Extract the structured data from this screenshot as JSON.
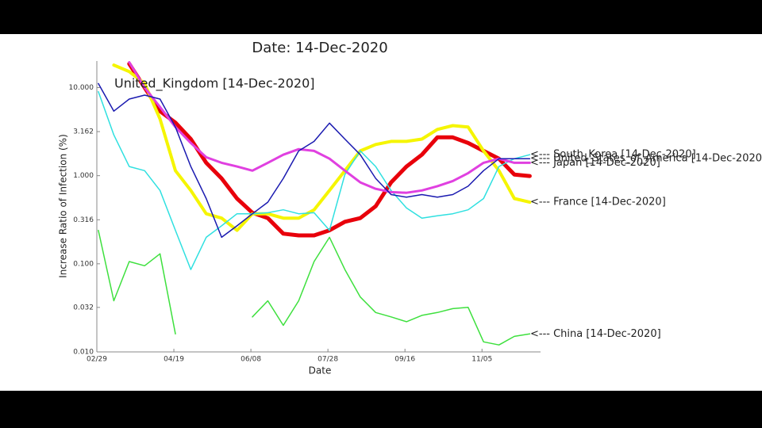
{
  "chart_data": {
    "type": "line",
    "title": "Date: 14-Dec-2020",
    "xlabel": "Date",
    "ylabel": "Increase Ratio of Infection (%)",
    "log_y": true,
    "xlim": [
      "2020-02-29",
      "2020-12-13"
    ],
    "xticks": [
      {
        "value": "2020-02-29",
        "label": "02/29"
      },
      {
        "value": "2020-04-19",
        "label": "04/19"
      },
      {
        "value": "2020-06-08",
        "label": "06/08"
      },
      {
        "value": "2020-07-28",
        "label": "07/28"
      },
      {
        "value": "2020-09-16",
        "label": "09/16"
      },
      {
        "value": "2020-11-05",
        "label": "11/05"
      }
    ],
    "ylim": [
      0.01,
      20
    ],
    "yticks": [
      {
        "value": 0.01,
        "label": "0.010"
      },
      {
        "value": 0.032,
        "label": "0.032"
      },
      {
        "value": 0.1,
        "label": "0.100"
      },
      {
        "value": 0.316,
        "label": "0.316"
      },
      {
        "value": 1,
        "label": "1.000"
      },
      {
        "value": 3.162,
        "label": "3.162"
      },
      {
        "value": 10,
        "label": "10.000"
      }
    ],
    "x": [
      "2020-03-01",
      "2020-03-11",
      "2020-03-21",
      "2020-03-31",
      "2020-04-10",
      "2020-04-20",
      "2020-04-30",
      "2020-05-10",
      "2020-05-20",
      "2020-05-30",
      "2020-06-09",
      "2020-06-19",
      "2020-06-29",
      "2020-07-09",
      "2020-07-19",
      "2020-07-29",
      "2020-08-08",
      "2020-08-18",
      "2020-08-28",
      "2020-09-07",
      "2020-09-17",
      "2020-09-27",
      "2020-10-07",
      "2020-10-17",
      "2020-10-27",
      "2020-11-06",
      "2020-11-16",
      "2020-11-26",
      "2020-12-06"
    ],
    "series": [
      {
        "name": "United_Kingdom [14-Dec-2020]",
        "label_position": "inside",
        "color": "#e8000b",
        "width": 5,
        "values": [
          null,
          null,
          18.6,
          10.0,
          5.4,
          4.0,
          2.6,
          1.4,
          0.93,
          0.55,
          0.38,
          0.33,
          0.22,
          0.21,
          0.21,
          0.24,
          0.3,
          0.33,
          0.45,
          0.84,
          1.27,
          1.73,
          2.72,
          2.72,
          2.35,
          1.91,
          1.56,
          1.03,
          0.99
        ]
      },
      {
        "name": "<--- France [14-Dec-2020]",
        "label_position": "right",
        "color": "#f5f500",
        "width": 4,
        "values": [
          null,
          18,
          15.2,
          11.1,
          4.4,
          1.14,
          0.68,
          0.37,
          0.33,
          0.24,
          0.37,
          0.37,
          0.33,
          0.33,
          0.41,
          0.68,
          1.14,
          1.91,
          2.26,
          2.45,
          2.45,
          2.6,
          3.35,
          3.7,
          3.56,
          1.91,
          1.14,
          0.55,
          0.5
        ]
      },
      {
        "name": "<--- South_Korea [14-Dec-2020]",
        "label_position": "right",
        "color": "#2fe0e0",
        "width": 1.5,
        "values": [
          9.0,
          2.9,
          1.27,
          1.14,
          0.68,
          0.24,
          0.086,
          0.2,
          0.27,
          0.37,
          0.37,
          0.38,
          0.41,
          0.37,
          0.38,
          0.24,
          1.03,
          1.91,
          1.27,
          0.68,
          0.43,
          0.33,
          0.35,
          0.37,
          0.41,
          0.55,
          1.27,
          1.56,
          1.73
        ]
      },
      {
        "name": "<--- China [14-Dec-2020]",
        "label_position": "right",
        "color": "#3ee03e",
        "width": 1.5,
        "values": [
          0.24,
          0.038,
          0.106,
          0.095,
          0.13,
          0.016,
          null,
          null,
          null,
          null,
          0.025,
          0.038,
          0.02,
          0.038,
          0.106,
          0.2,
          0.086,
          0.042,
          0.028,
          0.025,
          0.022,
          0.026,
          0.028,
          0.031,
          0.032,
          0.013,
          0.012,
          0.015,
          0.016
        ]
      },
      {
        "name": "<--- Japan [14-Dec-2020]",
        "label_position": "right",
        "color": "#e040e0",
        "width": 3,
        "values": [
          9.0,
          null,
          19.4,
          10.0,
          6.0,
          3.56,
          2.35,
          1.62,
          1.4,
          1.27,
          1.14,
          1.4,
          1.73,
          2.0,
          1.91,
          1.56,
          1.14,
          0.84,
          0.71,
          0.65,
          0.64,
          0.68,
          0.76,
          0.87,
          1.07,
          1.4,
          1.56,
          1.4,
          1.4
        ]
      },
      {
        "name": "<--- United_States_of_America [14-Dec-2020]",
        "label_position": "right",
        "color": "#1a1ab0",
        "width": 1.5,
        "values": [
          11.1,
          5.4,
          7.4,
          8.2,
          7.4,
          3.56,
          1.27,
          0.55,
          0.2,
          0.27,
          0.37,
          0.5,
          0.93,
          1.91,
          2.45,
          3.95,
          2.6,
          1.73,
          0.93,
          0.61,
          0.57,
          0.61,
          0.57,
          0.61,
          0.76,
          1.14,
          1.56,
          1.56,
          1.56
        ]
      }
    ]
  }
}
